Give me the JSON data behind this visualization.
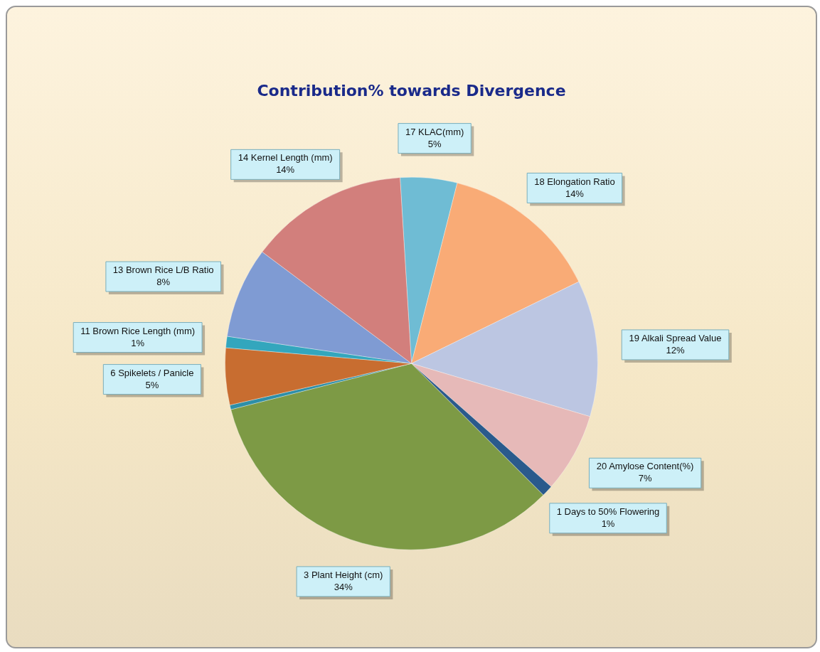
{
  "chart_data": {
    "type": "pie",
    "title": "Contribution% towards Divergence",
    "categories": [
      "17 KLAC(mm)",
      "18 Elongation Ratio",
      "19 Alkali Spread Value",
      "20 Amylose Content(%)",
      "1 Days to 50% Flowering",
      "3 Plant Height (cm)",
      null,
      "6 Spikelets / Panicle",
      "11 Brown Rice Length (mm)",
      "13 Brown Rice L/B Ratio",
      "14 Kernel Length (mm)"
    ],
    "values": [
      5,
      14,
      12,
      7,
      1,
      34,
      0.4,
      5,
      1,
      8,
      14
    ],
    "value_labels": [
      "5%",
      "14%",
      "12%",
      "7%",
      "1%",
      "34%",
      null,
      "5%",
      "1%",
      "8%",
      "14%"
    ],
    "colors": [
      "#6fbcd4",
      "#f9ab76",
      "#bcc6e2",
      "#e6b9b8",
      "#2a5a8c",
      "#7d9a45",
      "#2e8fa8",
      "#c86d30",
      "#33a6bd",
      "#7f9bd3",
      "#d27f7c"
    ],
    "legend": false
  }
}
